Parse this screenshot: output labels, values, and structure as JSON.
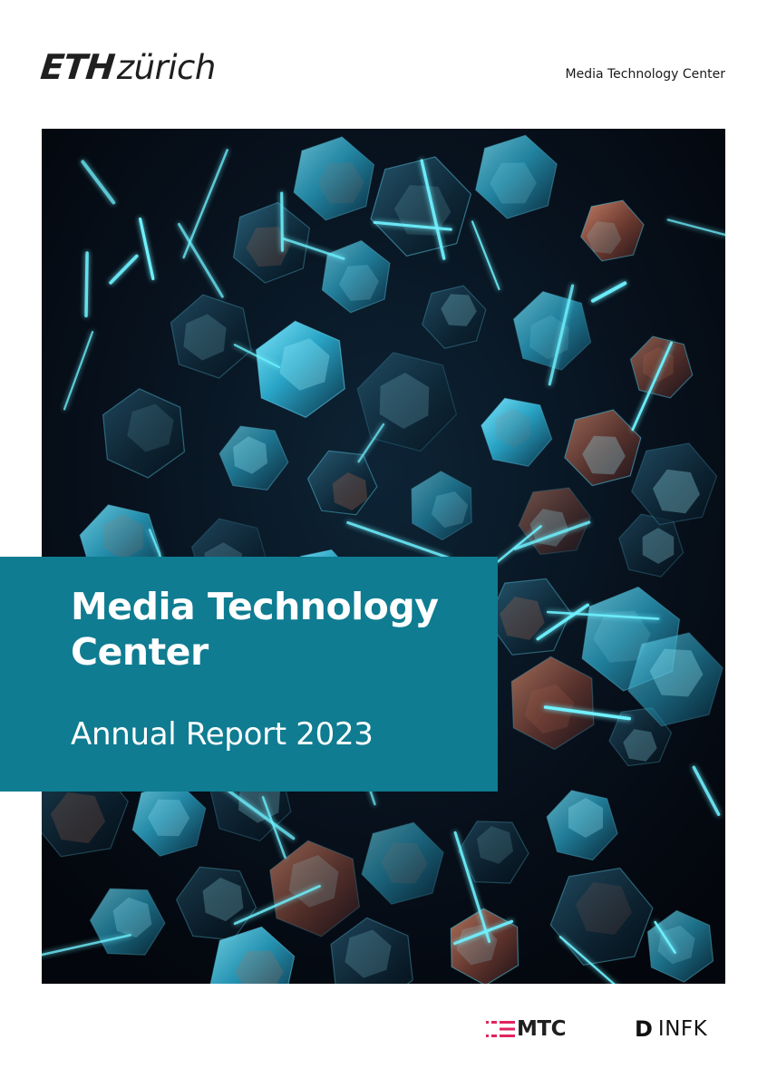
{
  "header": {
    "logo_eth": "ETH",
    "logo_zurich": "zürich",
    "unit_name": "Media Technology Center"
  },
  "cover": {
    "title_line1": "Media Technology",
    "title_line2": "Center",
    "subtitle": "Annual Report 2023",
    "panel_color": "#0f7c91",
    "image_description_icon": "neon-hexagon-sculpture-image"
  },
  "footer": {
    "mtc_logo_text": "MTC",
    "mtc_accent_color": "#e0245e",
    "dinfk_mark": "D",
    "dinfk_text": "INFK"
  }
}
